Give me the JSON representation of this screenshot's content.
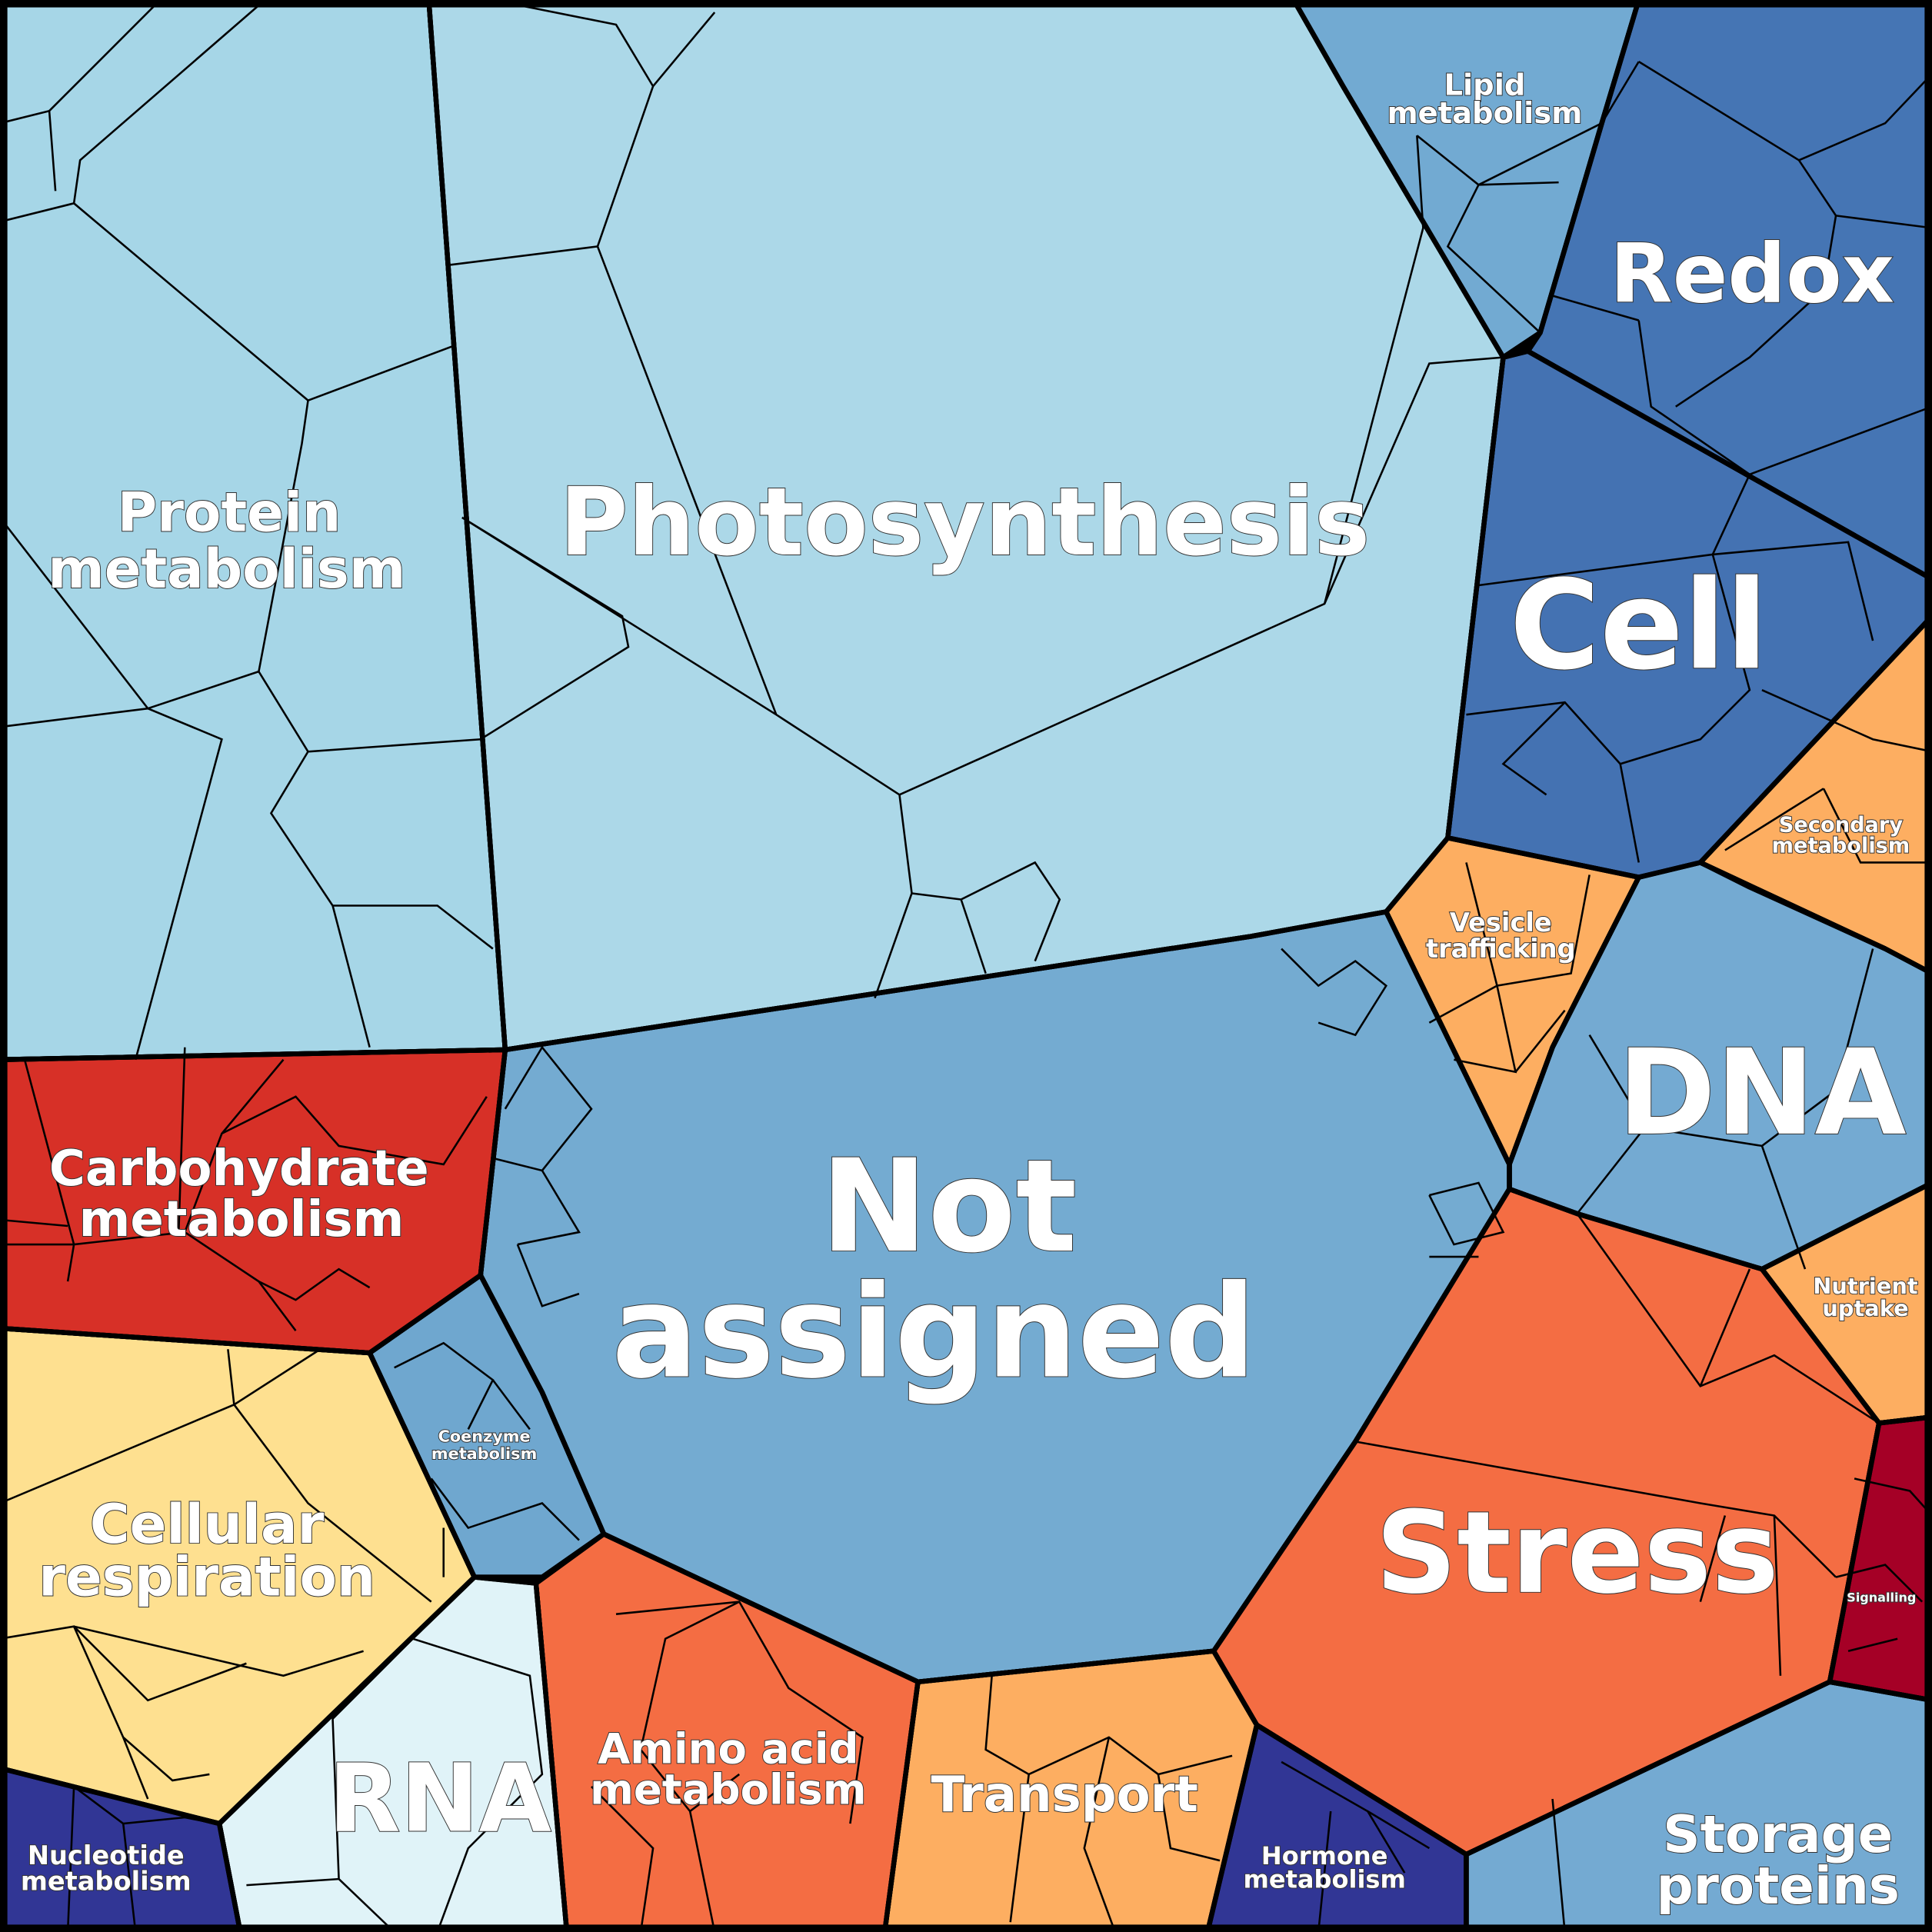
{
  "chart_data": {
    "type": "treemap",
    "subtype": "voronoi",
    "cells": [
      {
        "id": "protein",
        "label": [
          "Protein",
          "metabolism"
        ],
        "color": "#a6d6e7"
      },
      {
        "id": "photo",
        "label": [
          "Photosynthesis"
        ],
        "color": "#acd8e8"
      },
      {
        "id": "lipid",
        "label": [
          "Lipid",
          "metabolism"
        ],
        "color": "#72aad2"
      },
      {
        "id": "redox",
        "label": [
          "Redox"
        ],
        "color": "#4575b4"
      },
      {
        "id": "cell",
        "label": [
          "Cell"
        ],
        "color": "#4472b2"
      },
      {
        "id": "secondary",
        "label": [
          "Secondary",
          "metabolism"
        ],
        "color": "#fdae61"
      },
      {
        "id": "vesicle",
        "label": [
          "Vesicle",
          "trafficking"
        ],
        "color": "#fdae61"
      },
      {
        "id": "dna",
        "label": [
          "DNA"
        ],
        "color": "#74aad2"
      },
      {
        "id": "notassigned",
        "label": [
          "Not",
          "assigned"
        ],
        "color": "#74abd1"
      },
      {
        "id": "coenzyme",
        "label": [
          "Coenzyme",
          "metabolism"
        ],
        "color": "#6fa7cf"
      },
      {
        "id": "nutrient",
        "label": [
          "Nutrient",
          "uptake"
        ],
        "color": "#fdae61"
      },
      {
        "id": "stress",
        "label": [
          "Stress"
        ],
        "color": "#f46d43"
      },
      {
        "id": "signalling",
        "label": [
          "Signalling"
        ],
        "color": "#a50026"
      },
      {
        "id": "storage",
        "label": [
          "Storage",
          "proteins"
        ],
        "color": "#74aad2"
      },
      {
        "id": "hormone",
        "label": [
          "Hormone",
          "metabolism"
        ],
        "color": "#313695"
      },
      {
        "id": "transport",
        "label": [
          "Transport"
        ],
        "color": "#fdae61"
      },
      {
        "id": "amino",
        "label": [
          "Amino acid",
          "metabolism"
        ],
        "color": "#f46d43"
      },
      {
        "id": "rna",
        "label": [
          "RNA"
        ],
        "color": "#e0f3f8"
      },
      {
        "id": "respiration",
        "label": [
          "Cellular",
          "respiration"
        ],
        "color": "#fee090"
      },
      {
        "id": "nucleotide",
        "label": [
          "Nucleotide",
          "metabolism"
        ],
        "color": "#313695"
      },
      {
        "id": "carbo",
        "label": [
          "Carbohydrate",
          "metabolism"
        ],
        "color": "#d73027"
      }
    ]
  }
}
